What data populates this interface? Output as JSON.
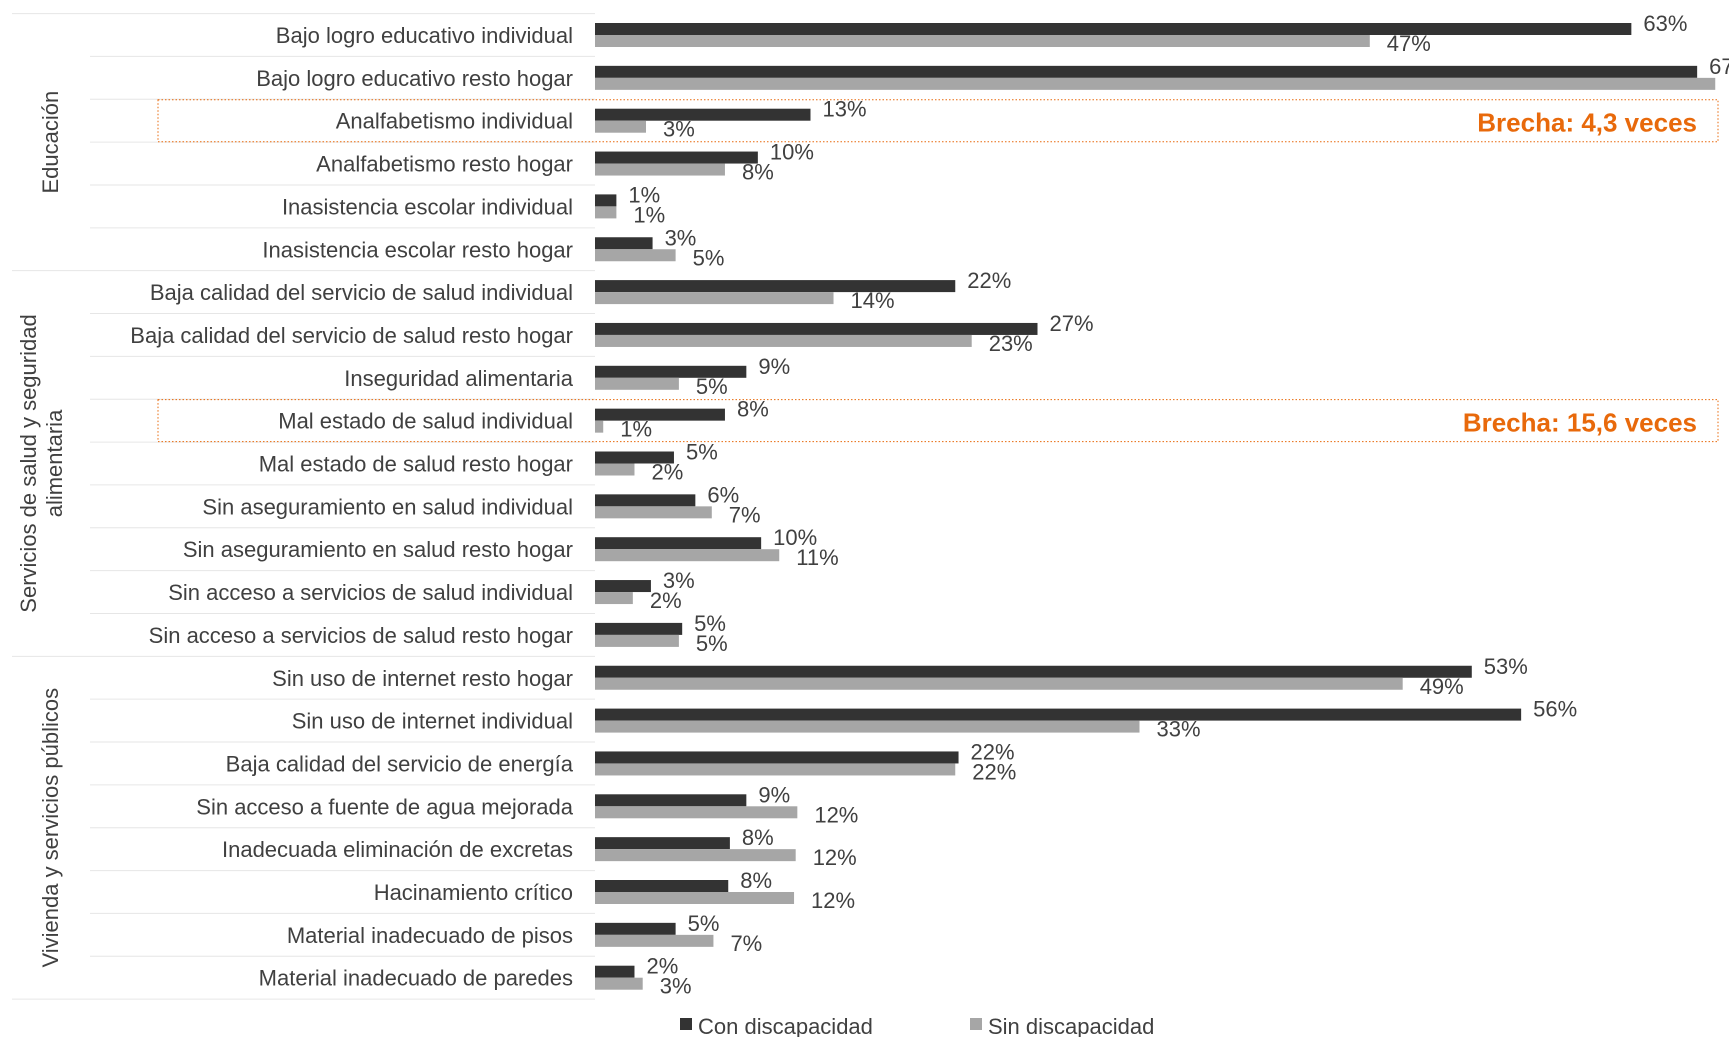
{
  "chart_data": {
    "type": "bar",
    "orientation": "horizontal",
    "title": "",
    "xlabel": "",
    "ylabel": "",
    "xlim": [
      0,
      70
    ],
    "grid": false,
    "legend_position": "bottom",
    "value_suffix": "%",
    "categories": [
      "Bajo logro educativo individual",
      "Bajo logro educativo resto hogar",
      "Analfabetismo individual",
      "Analfabetismo resto hogar",
      "Inasistencia escolar individual",
      "Inasistencia escolar resto hogar",
      "Baja calidad del servicio de salud individual",
      "Baja calidad del servicio de salud resto hogar",
      "Inseguridad alimentaria",
      "Mal estado de salud individual",
      "Mal estado de salud resto hogar",
      "Sin aseguramiento en salud individual",
      "Sin aseguramiento en salud resto hogar",
      "Sin acceso a servicios de salud individual",
      "Sin acceso a servicios de salud resto hogar",
      "Sin uso de internet resto hogar",
      "Sin uso de internet individual",
      "Baja calidad del servicio de energía",
      "Sin acceso a fuente de agua mejorada",
      "Inadecuada eliminación de excretas",
      "Hacinamiento crítico",
      "Material inadecuado de pisos",
      "Material inadecuado de paredes"
    ],
    "series": [
      {
        "name": "Con discapacidad",
        "color": "#333333",
        "values": [
          63,
          67,
          13,
          10,
          1,
          3,
          22,
          27,
          9,
          8,
          5,
          6,
          10,
          3,
          5,
          53,
          56,
          22,
          9,
          8,
          8,
          5,
          2
        ],
        "bar_values": [
          63,
          67,
          13.1,
          9.9,
          1.3,
          3.5,
          21.9,
          26.9,
          9.2,
          7.9,
          4.8,
          6.1,
          10.1,
          3.4,
          5.3,
          53.3,
          56.3,
          22.1,
          9.2,
          8.2,
          8.1,
          4.9,
          2.4
        ]
      },
      {
        "name": "Sin discapacidad",
        "color": "#a6a6a6",
        "values": [
          47,
          68,
          3,
          8,
          1,
          5,
          14,
          23,
          5,
          1,
          2,
          7,
          11,
          2,
          5,
          49,
          33,
          22,
          12,
          12,
          12,
          7,
          3
        ],
        "bar_values": [
          47.1,
          68.1,
          3.1,
          7.9,
          1.3,
          4.9,
          14.5,
          22.9,
          5.1,
          0.5,
          2.4,
          7.1,
          11.2,
          2.3,
          5.1,
          49.1,
          33.1,
          21.9,
          12.3,
          12.2,
          12.1,
          7.2,
          2.9
        ]
      }
    ],
    "groups": [
      {
        "label": "Educación",
        "start": 0,
        "end": 5
      },
      {
        "label": "Servicios de salud y seguridad alimentaria",
        "start": 6,
        "end": 14
      },
      {
        "label": "Vivienda y servicios públicos",
        "start": 15,
        "end": 22
      }
    ],
    "annotations": [
      {
        "row": 2,
        "text": "Brecha: 4,3 veces",
        "color": "#e8690b"
      },
      {
        "row": 9,
        "text": "Brecha: 15,6 veces",
        "color": "#e8690b"
      }
    ],
    "legend": [
      "Con discapacidad",
      "Sin discapacidad"
    ]
  }
}
